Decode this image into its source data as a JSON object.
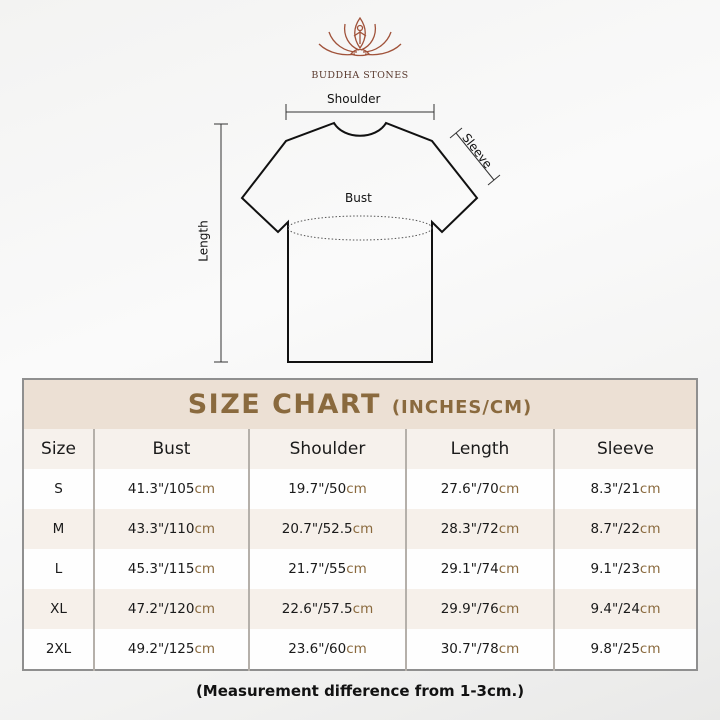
{
  "brand": {
    "name": "BUDDHA STONES"
  },
  "diagram": {
    "shoulder": "Shoulder",
    "sleeve": "Sleeve",
    "bust": "Bust",
    "length": "Length"
  },
  "chart": {
    "title": "SIZE CHART",
    "title_units": "(INCHES/CM)",
    "headers": [
      "Size",
      "Bust",
      "Shoulder",
      "Length",
      "Sleeve"
    ],
    "unit_suffix": "cm",
    "rows": [
      {
        "size": "S",
        "cells": [
          "41.3\"/105",
          "19.7\"/50",
          "27.6\"/70",
          "8.3\"/21"
        ]
      },
      {
        "size": "M",
        "cells": [
          "43.3\"/110",
          "20.7\"/52.5",
          "28.3\"/72",
          "8.7\"/22"
        ]
      },
      {
        "size": "L",
        "cells": [
          "45.3\"/115",
          "21.7\"/55",
          "29.1\"/74",
          "9.1\"/23"
        ]
      },
      {
        "size": "XL",
        "cells": [
          "47.2\"/120",
          "22.6\"/57.5",
          "29.9\"/76",
          "9.4\"/24"
        ]
      },
      {
        "size": "2XL",
        "cells": [
          "49.2\"/125",
          "23.6\"/60",
          "30.7\"/78",
          "9.8\"/25"
        ]
      }
    ],
    "note": "(Measurement difference from 1-3cm.)"
  },
  "colors": {
    "accent": "#8a6a3e",
    "title_band": "#ece0d4",
    "logo": "#a0523a"
  }
}
